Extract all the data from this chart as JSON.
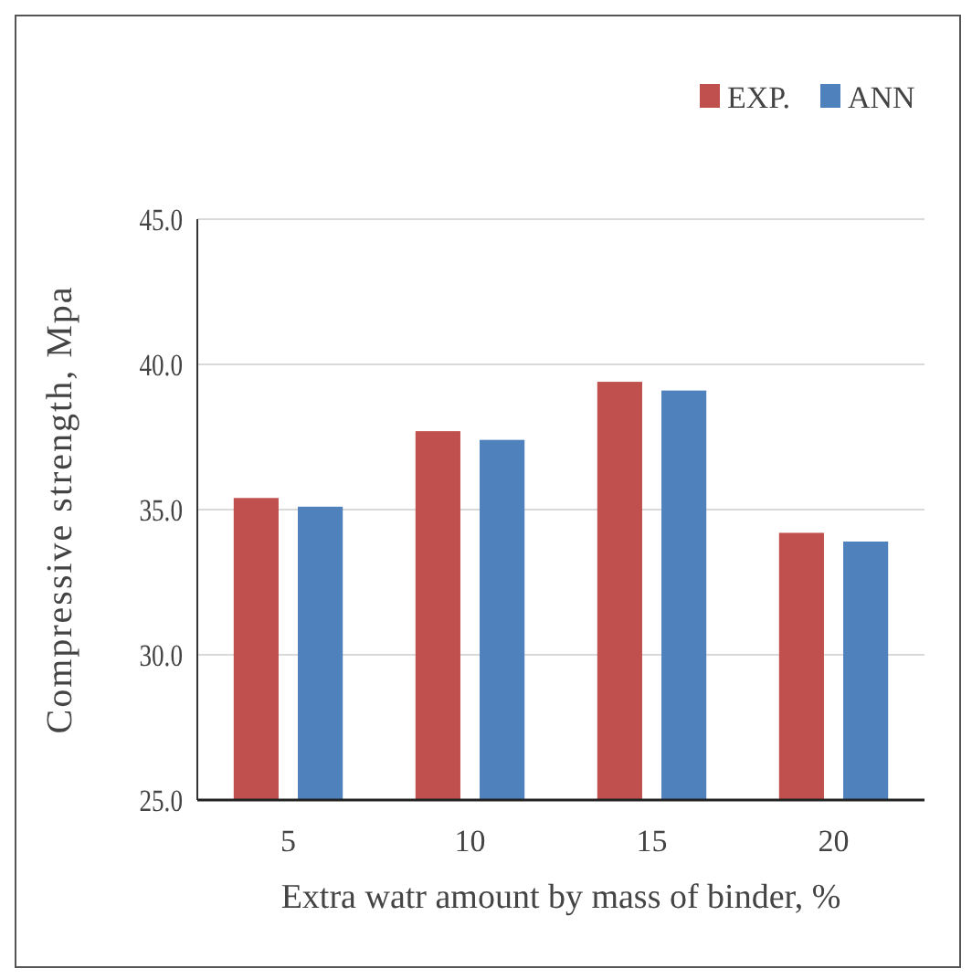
{
  "chart_data": {
    "type": "bar",
    "xlabel": "Extra watr amount by mass of binder, %",
    "ylabel": "Compressive strength, Mpa",
    "categories": [
      "5",
      "10",
      "15",
      "20"
    ],
    "series": [
      {
        "name": "EXP.",
        "color": "#c0504d",
        "values": [
          35.4,
          37.7,
          39.4,
          34.2
        ]
      },
      {
        "name": "ANN",
        "color": "#4f81bd",
        "values": [
          35.1,
          37.4,
          39.1,
          33.9
        ]
      }
    ],
    "ylim": [
      25,
      45
    ],
    "yticks": [
      {
        "value": 25,
        "label": "25.0"
      },
      {
        "value": 30,
        "label": "30.0"
      },
      {
        "value": 35,
        "label": "35.0"
      },
      {
        "value": 40,
        "label": "40.0"
      },
      {
        "value": 45,
        "label": "45.0"
      }
    ],
    "grid": "y",
    "legend": "top right"
  }
}
